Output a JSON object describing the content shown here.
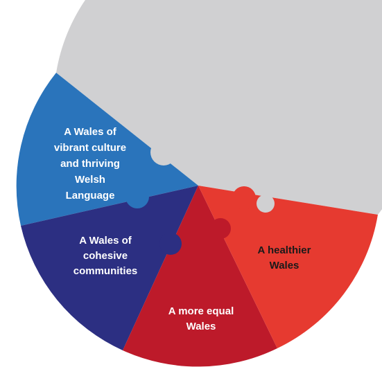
{
  "segments": [
    {
      "lines": [
        "A Wales of",
        "vibrant culture",
        "and thriving",
        "Welsh",
        "Language"
      ]
    },
    {
      "lines": [
        "A Wales of",
        "cohesive",
        "communities"
      ]
    },
    {
      "lines": [
        "A more equal",
        "Wales"
      ]
    },
    {
      "lines": [
        "A healthier",
        "Wales"
      ]
    }
  ]
}
